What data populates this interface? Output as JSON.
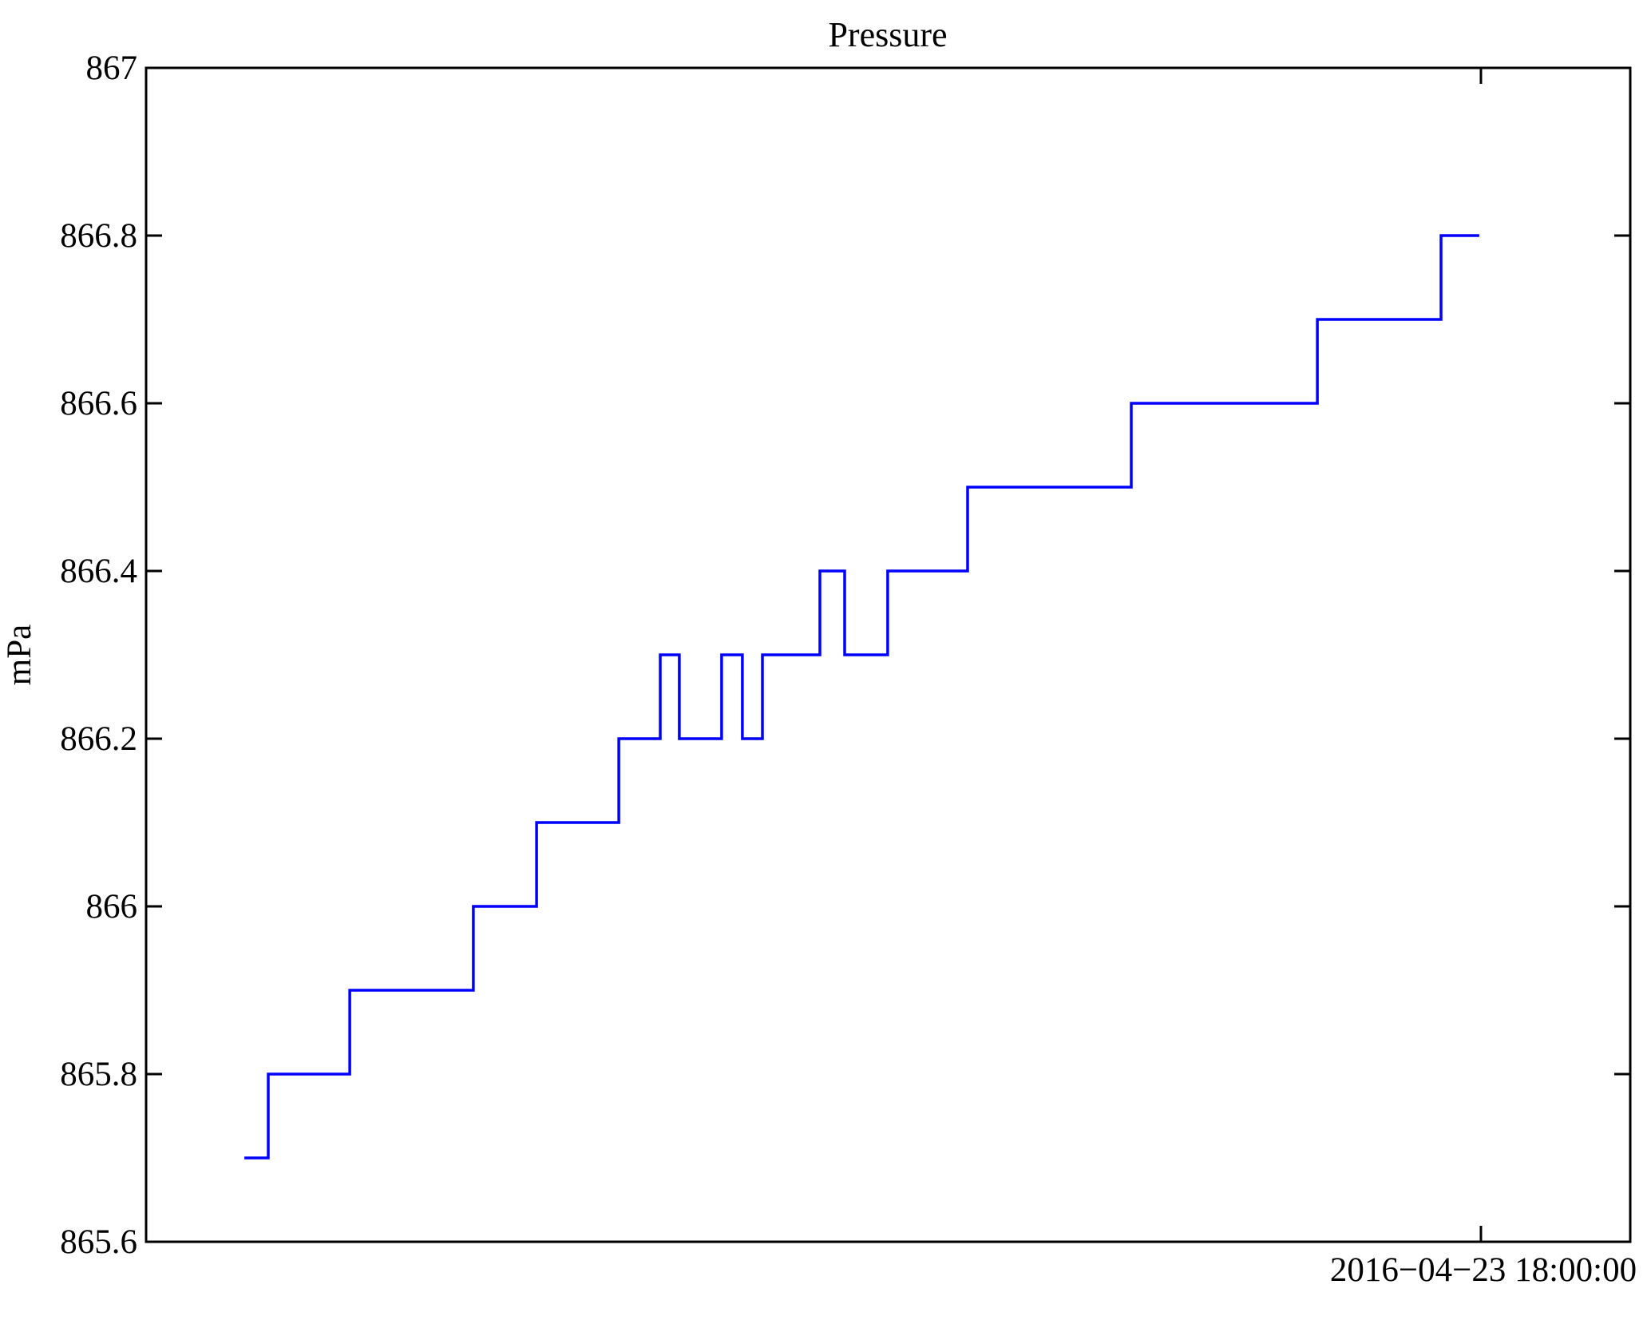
{
  "page": {
    "background": "#ffffff"
  },
  "chart_data": {
    "type": "line",
    "style": "step",
    "title": "Pressure",
    "ylabel": "mPa",
    "legend": "none",
    "grid": "off",
    "line_color": "#0000ff",
    "axis_color": "#000000",
    "ylim": [
      865.6,
      867
    ],
    "yticks": [
      {
        "value": 867,
        "label": "867"
      },
      {
        "value": 866.8,
        "label": "866.8"
      },
      {
        "value": 866.6,
        "label": "866.6"
      },
      {
        "value": 866.4,
        "label": "866.4"
      },
      {
        "value": 866.2,
        "label": "866.2"
      },
      {
        "value": 866,
        "label": "866"
      },
      {
        "value": 865.8,
        "label": "865.8"
      },
      {
        "value": 865.6,
        "label": "865.6"
      }
    ],
    "xticks": [
      {
        "frac": 0.8994,
        "label": "2016−04−23 18:00:00"
      }
    ],
    "series": [
      {
        "name": "Pressure",
        "x_unit": "fraction-of-plot-width",
        "end_x": 0.8983,
        "points": [
          {
            "x": 0.0662,
            "v": 865.7
          },
          {
            "x": 0.0823,
            "v": 865.8
          },
          {
            "x": 0.1372,
            "v": 865.9
          },
          {
            "x": 0.2205,
            "v": 866.0
          },
          {
            "x": 0.2631,
            "v": 866.1
          },
          {
            "x": 0.3185,
            "v": 866.2
          },
          {
            "x": 0.3464,
            "v": 866.3
          },
          {
            "x": 0.3593,
            "v": 866.2
          },
          {
            "x": 0.3878,
            "v": 866.3
          },
          {
            "x": 0.4018,
            "v": 866.2
          },
          {
            "x": 0.4153,
            "v": 866.3
          },
          {
            "x": 0.454,
            "v": 866.4
          },
          {
            "x": 0.4707,
            "v": 866.3
          },
          {
            "x": 0.4997,
            "v": 866.4
          },
          {
            "x": 0.5535,
            "v": 866.5
          },
          {
            "x": 0.6638,
            "v": 866.6
          },
          {
            "x": 0.7892,
            "v": 866.7
          },
          {
            "x": 0.8725,
            "v": 866.8
          }
        ]
      }
    ]
  }
}
